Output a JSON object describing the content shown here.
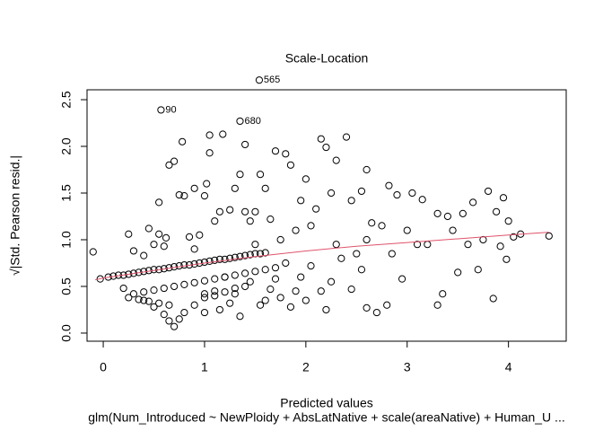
{
  "chart_data": {
    "type": "scatter",
    "title": "Scale-Location",
    "x_label": "Predicted values",
    "y_label": "√|Std. Pearson resid.|",
    "subtitle": "glm(Num_Introduced ~ NewPloidy + AbsLatNative + scale(areaNative) + Human_U ...",
    "xlim": [
      -0.16,
      4.57
    ],
    "ylim": [
      -0.087,
      2.606
    ],
    "xticks": [
      0,
      1,
      2,
      3,
      4
    ],
    "yticks": [
      {
        "value": 0,
        "label": "0.0"
      },
      0.5,
      {
        "value": 1,
        "label": "1.0"
      },
      1.5,
      {
        "value": 2,
        "label": "2.0"
      },
      2.5
    ],
    "series": [
      {
        "name": "residuals",
        "color": "#000000",
        "x": [
          -0.03,
          0.05,
          0.1,
          0.15,
          0.2,
          0.25,
          0.3,
          0.35,
          0.4,
          0.45,
          0.5,
          0.55,
          0.6,
          0.65,
          0.7,
          0.75,
          0.8,
          0.85,
          0.9,
          0.95,
          1.0,
          1.05,
          1.1,
          1.15,
          1.2,
          1.25,
          1.3,
          1.35,
          1.4,
          1.45,
          1.5,
          1.55,
          1.6,
          0.3,
          0.4,
          0.5,
          0.6,
          0.7,
          0.8,
          0.9,
          1.0,
          1.1,
          1.2,
          1.3,
          1.4,
          1.5,
          1.6,
          1.7,
          0.25,
          0.35,
          0.45,
          0.55,
          0.65,
          1.0,
          1.1,
          1.2,
          1.3,
          1.4,
          0.4,
          0.5,
          0.6,
          0.65,
          0.7,
          0.75,
          0.8,
          0.9,
          1.0,
          1.1,
          -0.1,
          0.25,
          0.2,
          0.3,
          0.4,
          0.45,
          0.5,
          0.55,
          0.6,
          0.62,
          0.55,
          0.65,
          0.7,
          0.75,
          0.8,
          0.78,
          0.85,
          0.9,
          0.95,
          1.0,
          1.02,
          1.05,
          1.05,
          1.18,
          1.1,
          1.15,
          1.25,
          1.3,
          1.4,
          1.45,
          1.5,
          1.35,
          1.4,
          1.55,
          1.6,
          1.65,
          1.7,
          1.75,
          1.8,
          1.85,
          1.9,
          1.95,
          2.0,
          2.05,
          2.1,
          2.15,
          2.2,
          2.25,
          2.3,
          2.4,
          2.45,
          2.55,
          2.6,
          2.65,
          2.75,
          2.82,
          2.9,
          3.0,
          3.05,
          3.15,
          3.2,
          3.3,
          3.4,
          3.55,
          3.65,
          3.8,
          3.88,
          3.95,
          4.0,
          4.05,
          4.12,
          4.4,
          3.7,
          3.75,
          3.85,
          3.92,
          3.98,
          3.5,
          3.45,
          3.35,
          3.1,
          2.95,
          2.85,
          2.7,
          2.8,
          2.6,
          2.55,
          2.5,
          2.45,
          2.35,
          2.25,
          2.2,
          2.15,
          2.05,
          2.0,
          1.95,
          1.9,
          1.85,
          1.8,
          1.75,
          1.7,
          1.65,
          1.6,
          1.55,
          1.5,
          1.45,
          1.35,
          1.3,
          1.25,
          1.2,
          1.15,
          1.0,
          0.9,
          2.3,
          2.6,
          3.3,
          3.6
        ],
        "values": [
          0.58,
          0.6,
          0.61,
          0.62,
          0.62,
          0.63,
          0.64,
          0.65,
          0.66,
          0.67,
          0.68,
          0.68,
          0.69,
          0.7,
          0.71,
          0.72,
          0.73,
          0.73,
          0.74,
          0.75,
          0.76,
          0.77,
          0.78,
          0.79,
          0.79,
          0.8,
          0.81,
          0.82,
          0.83,
          0.84,
          0.85,
          0.85,
          0.86,
          0.42,
          0.44,
          0.46,
          0.48,
          0.5,
          0.52,
          0.54,
          0.56,
          0.58,
          0.6,
          0.62,
          0.64,
          0.66,
          0.68,
          0.7,
          0.38,
          0.36,
          0.34,
          0.32,
          0.3,
          0.42,
          0.4,
          0.44,
          0.48,
          0.5,
          0.35,
          0.28,
          0.2,
          0.13,
          0.07,
          0.15,
          0.22,
          0.3,
          0.38,
          0.45,
          0.87,
          1.06,
          0.48,
          0.88,
          0.83,
          1.12,
          0.95,
          1.06,
          0.93,
          1.02,
          1.4,
          1.8,
          1.84,
          1.48,
          1.47,
          2.05,
          1.03,
          1.55,
          1.05,
          1.47,
          1.6,
          1.93,
          2.12,
          2.13,
          1.2,
          1.3,
          1.32,
          1.55,
          1.3,
          1.2,
          1.3,
          1.7,
          2.02,
          1.7,
          1.55,
          1.22,
          1.95,
          1.0,
          1.92,
          1.8,
          1.1,
          1.42,
          1.65,
          1.15,
          1.33,
          2.08,
          1.99,
          1.5,
          1.85,
          2.1,
          1.42,
          1.52,
          1.75,
          1.18,
          1.15,
          1.58,
          1.48,
          1.1,
          1.5,
          1.43,
          0.95,
          1.28,
          1.25,
          1.28,
          1.4,
          1.52,
          1.3,
          1.45,
          1.2,
          1.03,
          1.06,
          1.04,
          0.68,
          1.0,
          0.37,
          0.93,
          0.79,
          0.65,
          1.1,
          0.42,
          0.95,
          0.58,
          0.85,
          0.22,
          0.3,
          0.27,
          0.68,
          0.85,
          0.47,
          0.8,
          0.55,
          0.25,
          0.45,
          0.72,
          0.35,
          0.6,
          0.45,
          0.28,
          0.75,
          0.38,
          0.58,
          0.47,
          0.35,
          0.3,
          0.95,
          0.55,
          0.18,
          0.42,
          0.32,
          0.6,
          0.25,
          0.22,
          0.9,
          0.95,
          1.0,
          0.3,
          0.95
        ]
      },
      {
        "name": "smoother",
        "color": "#df536b",
        "line": true,
        "x": [
          -0.08,
          0,
          0.5,
          1,
          1.5,
          2,
          2.5,
          3,
          3.5,
          4,
          4.4
        ],
        "values": [
          0.57,
          0.59,
          0.67,
          0.75,
          0.82,
          0.88,
          0.93,
          0.97,
          1.01,
          1.05,
          1.08
        ]
      }
    ],
    "annotations": [
      {
        "x": 1.54,
        "y": 2.71,
        "label": "565"
      },
      {
        "x": 0.57,
        "y": 2.39,
        "label": "90"
      },
      {
        "x": 1.35,
        "y": 2.27,
        "label": "680"
      }
    ]
  }
}
